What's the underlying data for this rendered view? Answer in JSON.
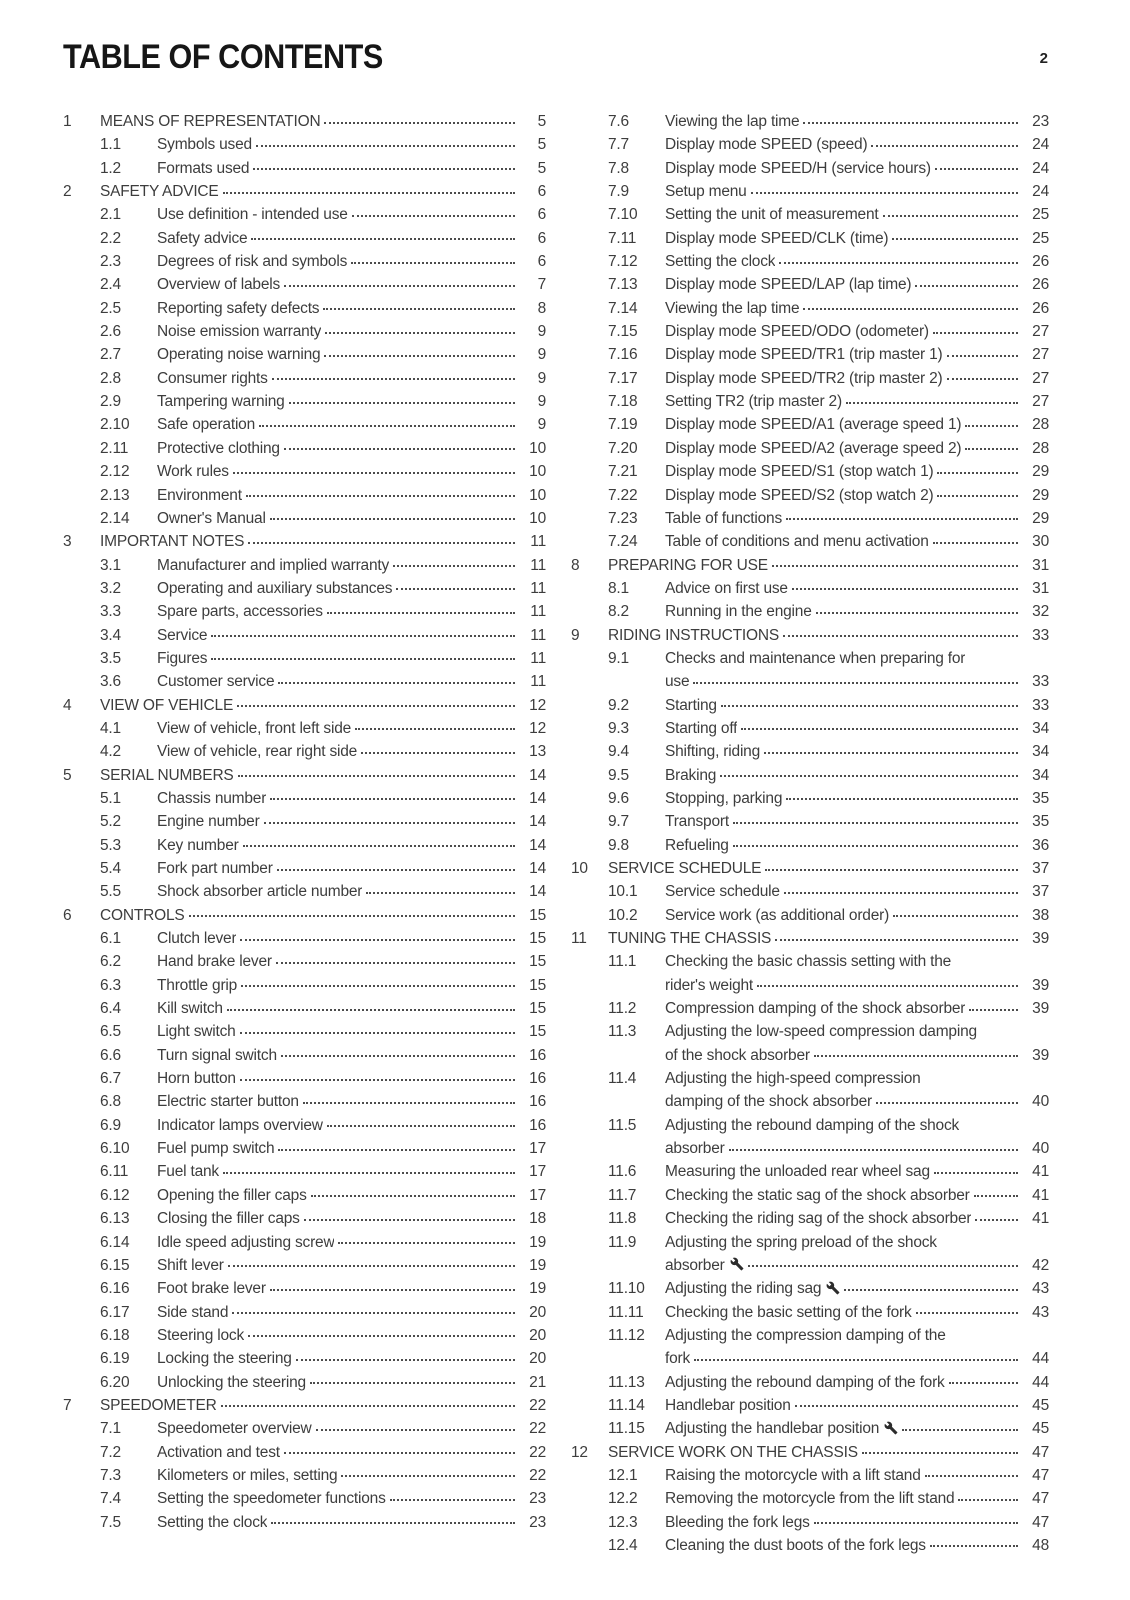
{
  "page": {
    "title": "TABLE OF CONTENTS",
    "page_number": "2"
  },
  "colors": {
    "text": "#3d3d3d",
    "heading": "#161616",
    "dots": "#4c4c4c"
  },
  "icons": {
    "wrench": "wrench-icon"
  },
  "toc": {
    "columns": [
      {
        "entries": [
          {
            "n": "1",
            "t": "MEANS OF REPRESENTATION",
            "p": "5"
          },
          {
            "n": "1.1",
            "t": "Symbols used",
            "p": "5"
          },
          {
            "n": "1.2",
            "t": "Formats used",
            "p": "5"
          },
          {
            "n": "2",
            "t": "SAFETY ADVICE",
            "p": "6"
          },
          {
            "n": "2.1",
            "t": "Use definition - intended use",
            "p": "6"
          },
          {
            "n": "2.2",
            "t": "Safety advice",
            "p": "6"
          },
          {
            "n": "2.3",
            "t": "Degrees of risk and symbols",
            "p": "6"
          },
          {
            "n": "2.4",
            "t": "Overview of labels",
            "p": "7"
          },
          {
            "n": "2.5",
            "t": "Reporting safety defects",
            "p": "8"
          },
          {
            "n": "2.6",
            "t": "Noise emission warranty",
            "p": "9"
          },
          {
            "n": "2.7",
            "t": "Operating noise warning",
            "p": "9"
          },
          {
            "n": "2.8",
            "t": "Consumer rights",
            "p": "9"
          },
          {
            "n": "2.9",
            "t": "Tampering warning",
            "p": "9"
          },
          {
            "n": "2.10",
            "t": "Safe operation",
            "p": "9"
          },
          {
            "n": "2.11",
            "t": "Protective clothing",
            "p": "10"
          },
          {
            "n": "2.12",
            "t": "Work rules",
            "p": "10"
          },
          {
            "n": "2.13",
            "t": "Environment",
            "p": "10"
          },
          {
            "n": "2.14",
            "t": "Owner's Manual",
            "p": "10"
          },
          {
            "n": "3",
            "t": "IMPORTANT NOTES",
            "p": "11"
          },
          {
            "n": "3.1",
            "t": "Manufacturer and implied warranty",
            "p": "11"
          },
          {
            "n": "3.2",
            "t": "Operating and auxiliary substances",
            "p": "11"
          },
          {
            "n": "3.3",
            "t": "Spare parts, accessories",
            "p": "11"
          },
          {
            "n": "3.4",
            "t": "Service",
            "p": "11"
          },
          {
            "n": "3.5",
            "t": "Figures",
            "p": "11"
          },
          {
            "n": "3.6",
            "t": "Customer service",
            "p": "11"
          },
          {
            "n": "4",
            "t": "VIEW OF VEHICLE",
            "p": "12"
          },
          {
            "n": "4.1",
            "t": "View of vehicle, front left side",
            "p": "12"
          },
          {
            "n": "4.2",
            "t": "View of vehicle, rear right side",
            "p": "13"
          },
          {
            "n": "5",
            "t": "SERIAL NUMBERS",
            "p": "14"
          },
          {
            "n": "5.1",
            "t": "Chassis number",
            "p": "14"
          },
          {
            "n": "5.2",
            "t": "Engine number",
            "p": "14"
          },
          {
            "n": "5.3",
            "t": "Key number",
            "p": "14"
          },
          {
            "n": "5.4",
            "t": "Fork part number",
            "p": "14"
          },
          {
            "n": "5.5",
            "t": "Shock absorber article number",
            "p": "14"
          },
          {
            "n": "6",
            "t": "CONTROLS",
            "p": "15"
          },
          {
            "n": "6.1",
            "t": "Clutch lever",
            "p": "15"
          },
          {
            "n": "6.2",
            "t": "Hand brake lever",
            "p": "15"
          },
          {
            "n": "6.3",
            "t": "Throttle grip",
            "p": "15"
          },
          {
            "n": "6.4",
            "t": "Kill switch",
            "p": "15"
          },
          {
            "n": "6.5",
            "t": "Light switch",
            "p": "15"
          },
          {
            "n": "6.6",
            "t": "Turn signal switch",
            "p": "16"
          },
          {
            "n": "6.7",
            "t": "Horn button",
            "p": "16"
          },
          {
            "n": "6.8",
            "t": "Electric starter button",
            "p": "16"
          },
          {
            "n": "6.9",
            "t": "Indicator lamps overview",
            "p": "16"
          },
          {
            "n": "6.10",
            "t": "Fuel pump switch",
            "p": "17"
          },
          {
            "n": "6.11",
            "t": "Fuel tank",
            "p": "17"
          },
          {
            "n": "6.12",
            "t": "Opening the filler caps",
            "p": "17"
          },
          {
            "n": "6.13",
            "t": "Closing the filler caps",
            "p": "18"
          },
          {
            "n": "6.14",
            "t": "Idle speed adjusting screw",
            "p": "19"
          },
          {
            "n": "6.15",
            "t": "Shift lever",
            "p": "19"
          },
          {
            "n": "6.16",
            "t": "Foot brake lever",
            "p": "19"
          },
          {
            "n": "6.17",
            "t": "Side stand",
            "p": "20"
          },
          {
            "n": "6.18",
            "t": "Steering lock",
            "p": "20"
          },
          {
            "n": "6.19",
            "t": "Locking the steering",
            "p": "20"
          },
          {
            "n": "6.20",
            "t": "Unlocking the steering",
            "p": "21"
          },
          {
            "n": "7",
            "t": "SPEEDOMETER",
            "p": "22"
          },
          {
            "n": "7.1",
            "t": "Speedometer overview",
            "p": "22"
          },
          {
            "n": "7.2",
            "t": "Activation and test",
            "p": "22"
          },
          {
            "n": "7.3",
            "t": "Kilometers or miles, setting",
            "p": "22"
          },
          {
            "n": "7.4",
            "t": "Setting the speedometer functions",
            "p": "23"
          },
          {
            "n": "7.5",
            "t": "Setting the clock",
            "p": "23"
          }
        ]
      },
      {
        "entries": [
          {
            "n": "7.6",
            "t": "Viewing the lap time",
            "p": "23"
          },
          {
            "n": "7.7",
            "t": "Display mode SPEED (speed)",
            "p": "24"
          },
          {
            "n": "7.8",
            "t": "Display mode SPEED/H (service hours)",
            "p": "24"
          },
          {
            "n": "7.9",
            "t": "Setup menu",
            "p": "24"
          },
          {
            "n": "7.10",
            "t": "Setting the unit of measurement",
            "p": "25"
          },
          {
            "n": "7.11",
            "t": "Display mode SPEED/CLK (time)",
            "p": "25"
          },
          {
            "n": "7.12",
            "t": "Setting the clock",
            "p": "26"
          },
          {
            "n": "7.13",
            "t": "Display mode SPEED/LAP (lap time)",
            "p": "26"
          },
          {
            "n": "7.14",
            "t": "Viewing the lap time",
            "p": "26"
          },
          {
            "n": "7.15",
            "t": "Display mode SPEED/ODO (odometer)",
            "p": "27"
          },
          {
            "n": "7.16",
            "t": "Display mode SPEED/TR1 (trip master 1)",
            "p": "27"
          },
          {
            "n": "7.17",
            "t": "Display mode SPEED/TR2 (trip master 2)",
            "p": "27"
          },
          {
            "n": "7.18",
            "t": "Setting TR2 (trip master 2)",
            "p": "27"
          },
          {
            "n": "7.19",
            "t": "Display mode SPEED/A1 (average speed 1)",
            "p": "28"
          },
          {
            "n": "7.20",
            "t": "Display mode SPEED/A2 (average speed 2)",
            "p": "28"
          },
          {
            "n": "7.21",
            "t": "Display mode SPEED/S1 (stop watch 1)",
            "p": "29"
          },
          {
            "n": "7.22",
            "t": "Display mode SPEED/S2 (stop watch 2)",
            "p": "29"
          },
          {
            "n": "7.23",
            "t": "Table of functions",
            "p": "29"
          },
          {
            "n": "7.24",
            "t": "Table of conditions and menu activation",
            "p": "30"
          },
          {
            "n": "8",
            "t": "PREPARING FOR USE",
            "p": "31"
          },
          {
            "n": "8.1",
            "t": "Advice on first use",
            "p": "31"
          },
          {
            "n": "8.2",
            "t": "Running in the engine",
            "p": "32"
          },
          {
            "n": "9",
            "t": "RIDING INSTRUCTIONS",
            "p": "33"
          },
          {
            "n": "9.1",
            "t": "Checks and maintenance when preparing for",
            "t2": "use",
            "p": "33"
          },
          {
            "n": "9.2",
            "t": "Starting",
            "p": "33"
          },
          {
            "n": "9.3",
            "t": "Starting off",
            "p": "34"
          },
          {
            "n": "9.4",
            "t": "Shifting, riding",
            "p": "34"
          },
          {
            "n": "9.5",
            "t": "Braking",
            "p": "34"
          },
          {
            "n": "9.6",
            "t": "Stopping, parking",
            "p": "35"
          },
          {
            "n": "9.7",
            "t": "Transport",
            "p": "35"
          },
          {
            "n": "9.8",
            "t": "Refueling",
            "p": "36"
          },
          {
            "n": "10",
            "t": "SERVICE SCHEDULE",
            "p": "37"
          },
          {
            "n": "10.1",
            "t": "Service schedule",
            "p": "37"
          },
          {
            "n": "10.2",
            "t": "Service work (as additional order)",
            "p": "38"
          },
          {
            "n": "11",
            "t": "TUNING THE CHASSIS",
            "p": "39"
          },
          {
            "n": "11.1",
            "t": "Checking the basic chassis setting with the",
            "t2": "rider's weight",
            "p": "39"
          },
          {
            "n": "11.2",
            "t": "Compression damping of the shock absorber",
            "p": "39"
          },
          {
            "n": "11.3",
            "t": "Adjusting the low-speed compression damping",
            "t2": "of the shock absorber",
            "p": "39"
          },
          {
            "n": "11.4",
            "t": "Adjusting the high-speed compression",
            "t2": "damping of the shock absorber",
            "p": "40"
          },
          {
            "n": "11.5",
            "t": "Adjusting the rebound damping of the shock",
            "t2": "absorber",
            "p": "40"
          },
          {
            "n": "11.6",
            "t": "Measuring the unloaded rear wheel sag",
            "p": "41"
          },
          {
            "n": "11.7",
            "t": "Checking the static sag of the shock absorber",
            "p": "41"
          },
          {
            "n": "11.8",
            "t": "Checking the riding sag of the shock absorber",
            "p": "41"
          },
          {
            "n": "11.9",
            "t": "Adjusting the spring preload of the shock",
            "t2": "absorber",
            "icon": "wrench",
            "p": "42"
          },
          {
            "n": "11.10",
            "t": "Adjusting the riding sag",
            "icon": "wrench",
            "p": "43"
          },
          {
            "n": "11.11",
            "t": "Checking the basic setting of the fork",
            "p": "43"
          },
          {
            "n": "11.12",
            "t": "Adjusting the compression damping of the",
            "t2": "fork",
            "p": "44"
          },
          {
            "n": "11.13",
            "t": "Adjusting the rebound damping of the fork",
            "p": "44"
          },
          {
            "n": "11.14",
            "t": "Handlebar position",
            "p": "45"
          },
          {
            "n": "11.15",
            "t": "Adjusting the handlebar position",
            "icon": "wrench",
            "p": "45"
          },
          {
            "n": "12",
            "t": "SERVICE WORK ON THE CHASSIS",
            "p": "47"
          },
          {
            "n": "12.1",
            "t": "Raising the motorcycle with a lift stand",
            "p": "47"
          },
          {
            "n": "12.2",
            "t": "Removing the motorcycle from the lift stand",
            "p": "47"
          },
          {
            "n": "12.3",
            "t": "Bleeding the fork legs",
            "p": "47"
          },
          {
            "n": "12.4",
            "t": "Cleaning the dust boots of the fork legs",
            "p": "48"
          }
        ]
      }
    ]
  }
}
